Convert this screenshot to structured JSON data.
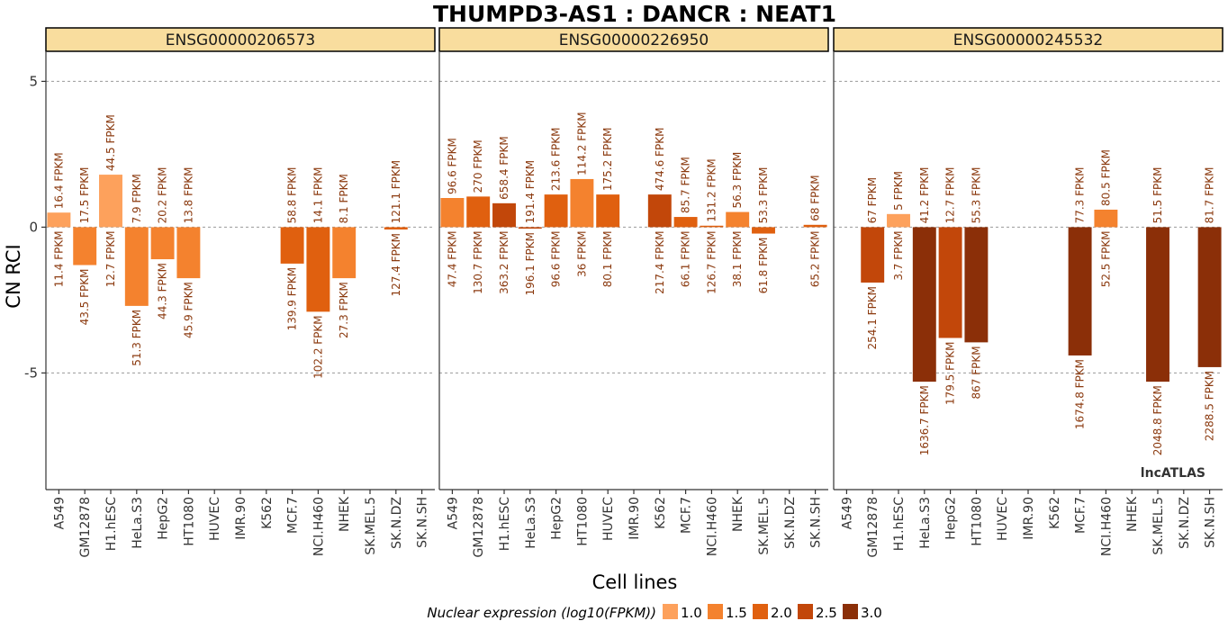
{
  "chart_data": {
    "type": "bar",
    "title": "THUMPD3-AS1 : DANCR : NEAT1",
    "xlabel": "Cell lines",
    "ylabel": "CN RCI",
    "ylim": [
      -9,
      6
    ],
    "yticks": [
      5,
      0,
      -5
    ],
    "ytick_labels": [
      "5",
      "0",
      "-5"
    ],
    "grid": true,
    "categories": [
      "A549",
      "GM12878",
      "H1.hESC",
      "HeLa.S3",
      "HepG2",
      "HT1080",
      "HUVEC",
      "IMR.90",
      "K562",
      "MCF.7",
      "NCI.H460",
      "NHEK",
      "SK.MEL.5",
      "SK.N.DZ",
      "SK.N.SH"
    ],
    "panels": [
      {
        "gene": "ENSG00000206573",
        "values": [
          0.5,
          -1.3,
          1.8,
          -2.7,
          -1.1,
          -1.75,
          null,
          null,
          null,
          -1.25,
          -2.9,
          -1.75,
          null,
          -0.08,
          null
        ],
        "log10_fpkm": [
          1.06,
          1.64,
          1.1,
          1.71,
          1.65,
          1.66,
          null,
          null,
          null,
          2.15,
          2.01,
          1.44,
          null,
          2.11,
          null
        ],
        "label_top": [
          "16.4 FPKM",
          "17.5 FPKM",
          "44.5 FPKM",
          "7.9 FPKM",
          "20.2 FPKM",
          "13.8 FPKM",
          "",
          "",
          "",
          "58.8 FPKM",
          "14.1 FPKM",
          "8.1 FPKM",
          "",
          "121.1 FPKM",
          ""
        ],
        "label_bottom": [
          "11.4 FPKM",
          "43.5 FPKM",
          "12.7 FPKM",
          "51.3 FPKM",
          "44.3 FPKM",
          "45.9 FPKM",
          "",
          "",
          "",
          "139.9 FPKM",
          "102.2 FPKM",
          "27.3 FPKM",
          "",
          "127.4 FPKM",
          ""
        ]
      },
      {
        "gene": "ENSG00000226950",
        "values": [
          1.0,
          1.05,
          0.82,
          -0.05,
          1.12,
          1.65,
          1.12,
          null,
          1.12,
          0.35,
          0.05,
          0.52,
          -0.22,
          null,
          0.08
        ],
        "log10_fpkm": [
          1.68,
          2.12,
          2.56,
          2.29,
          1.98,
          1.56,
          1.9,
          null,
          2.34,
          1.82,
          2.1,
          1.58,
          1.79,
          null,
          1.81
        ],
        "label_top": [
          "96.6 FPKM",
          "270 FPKM",
          "658.4 FPKM",
          "191.4 FPKM",
          "213.6 FPKM",
          "114.2 FPKM",
          "175.2 FPKM",
          "",
          "474.6 FPKM",
          "85.7 FPKM",
          "131.2 FPKM",
          "56.3 FPKM",
          "53.3 FPKM",
          "",
          "68 FPKM"
        ],
        "label_bottom": [
          "47.4 FPKM",
          "130.7 FPKM",
          "363.2 FPKM",
          "196.1 FPKM",
          "96.6 FPKM",
          "36 FPKM",
          "80.1 FPKM",
          "",
          "217.4 FPKM",
          "66.1 FPKM",
          "126.7 FPKM",
          "38.1 FPKM",
          "61.8 FPKM",
          "",
          "65.2 FPKM"
        ]
      },
      {
        "gene": "ENSG00000245532",
        "values": [
          null,
          -1.9,
          0.45,
          -5.3,
          -3.8,
          -3.95,
          null,
          null,
          null,
          -4.4,
          0.6,
          null,
          -5.3,
          null,
          -4.8
        ],
        "log10_fpkm": [
          null,
          2.4,
          0.8,
          3.21,
          2.25,
          2.94,
          null,
          null,
          null,
          3.22,
          1.72,
          null,
          3.31,
          null,
          3.36
        ],
        "label_top": [
          "",
          "67 FPKM",
          "5 FPKM",
          "41.2 FPKM",
          "12.7 FPKM",
          "55.3 FPKM",
          "",
          "",
          "",
          "77.3 FPKM",
          "80.5 FPKM",
          "",
          "51.5 FPKM",
          "",
          "81.7 FPKM"
        ],
        "label_bottom": [
          "",
          "254.1 FPKM",
          "3.7 FPKM",
          "1636.7 FPKM",
          "179.5 FPKM",
          "867 FPKM",
          "",
          "",
          "",
          "1674.8 FPKM",
          "52.5 FPKM",
          "",
          "2048.8 FPKM",
          "",
          "2288.5 FPKM"
        ]
      }
    ],
    "legend": {
      "title": "Nuclear expression (log10(FPKM))",
      "position": "bottom",
      "items": [
        {
          "label": "1.0",
          "color": "#fda15c"
        },
        {
          "label": "1.5",
          "color": "#f4822e"
        },
        {
          "label": "2.0",
          "color": "#e0600f"
        },
        {
          "label": "2.5",
          "color": "#c2470a"
        },
        {
          "label": "3.0",
          "color": "#8b2f08"
        }
      ]
    },
    "watermark": "lncATLAS"
  }
}
